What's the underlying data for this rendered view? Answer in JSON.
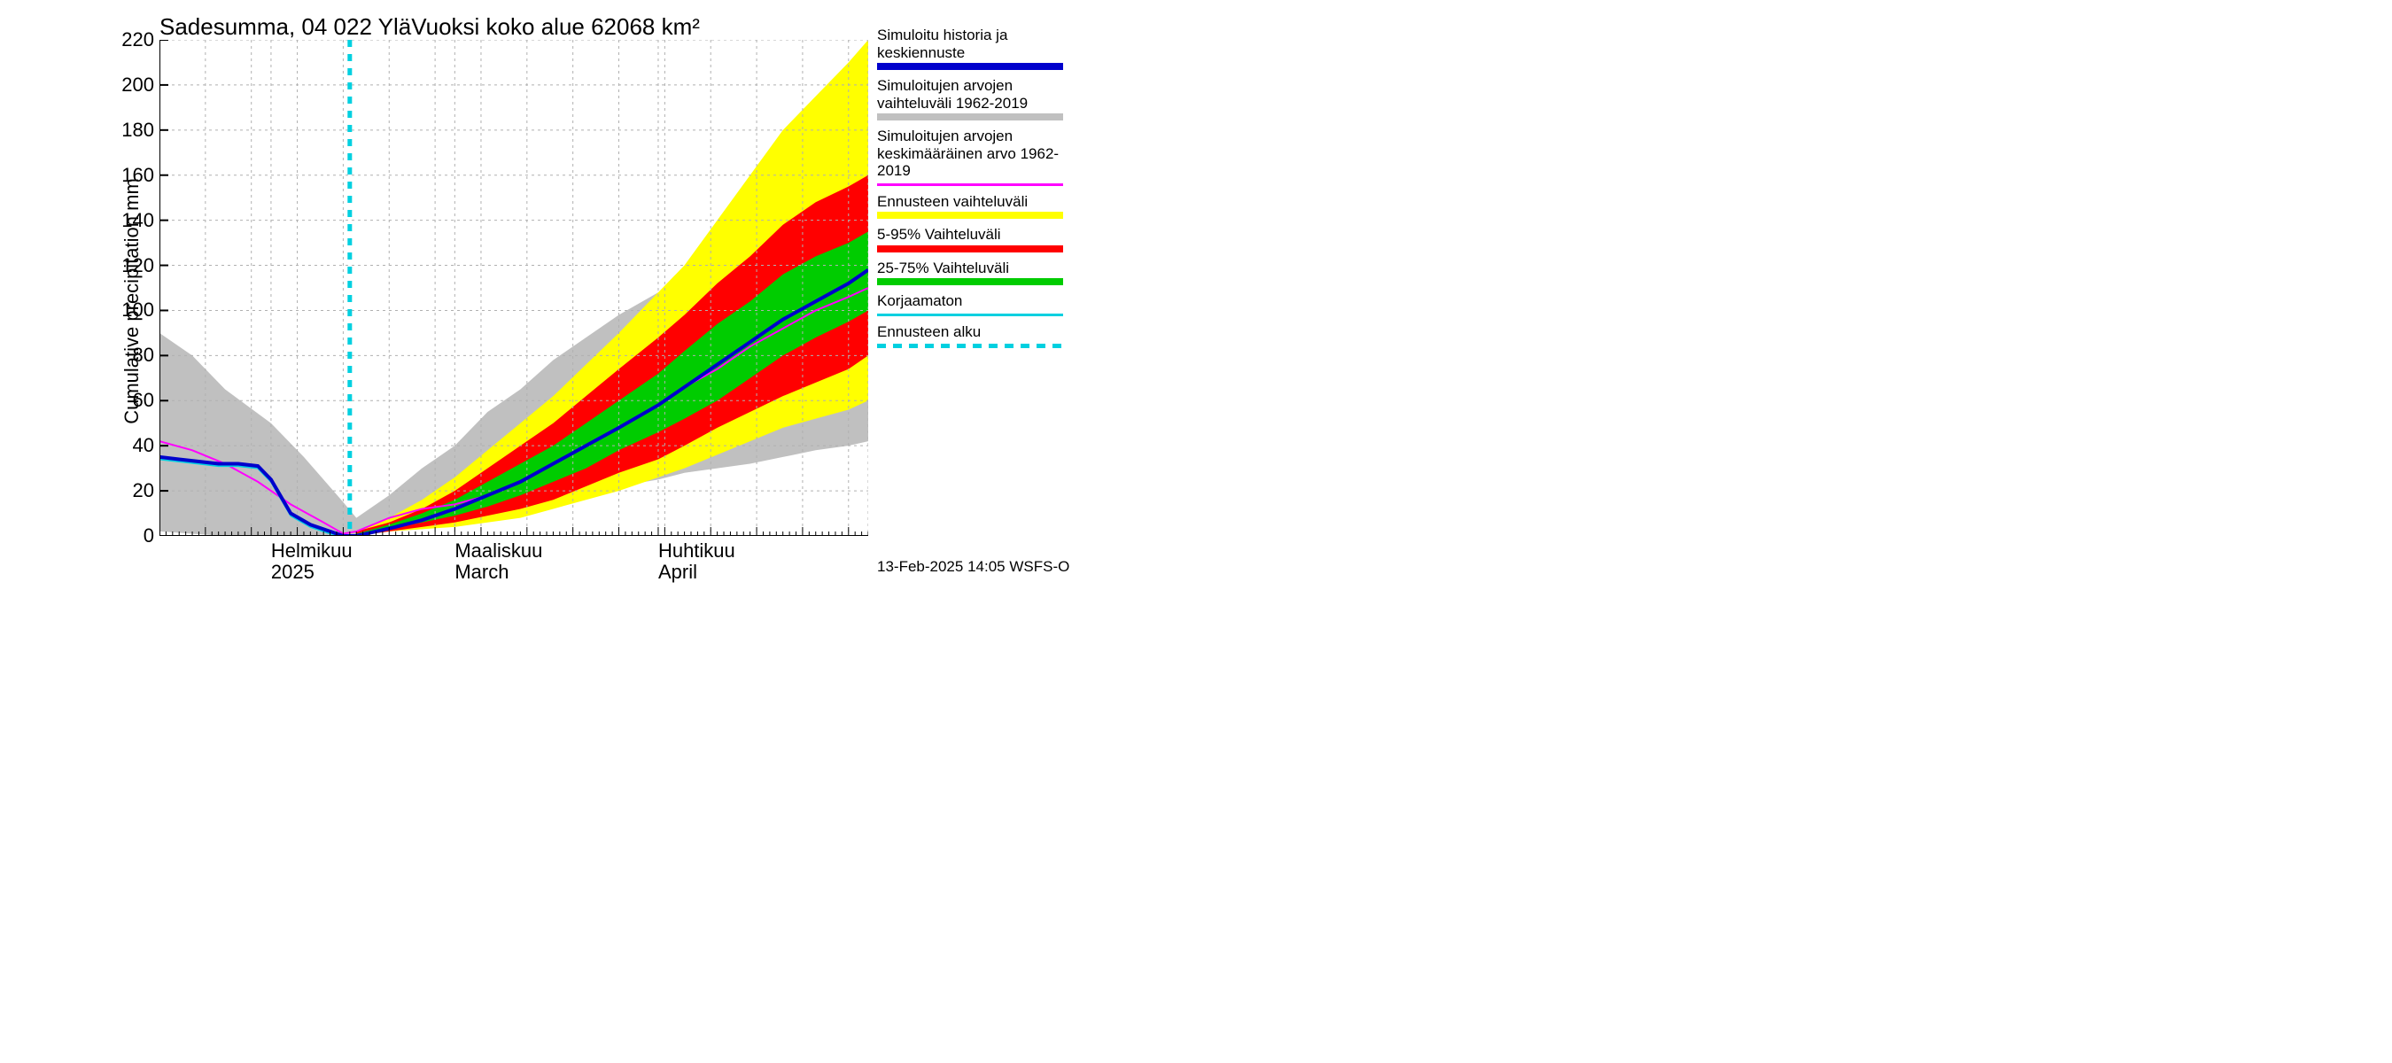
{
  "chart": {
    "type": "line-band",
    "title": "Sadesumma, 04 022 YläVuoksi koko alue 62068 km²",
    "y_axis": {
      "label": "Cumulative precipitation   mm",
      "min": 0,
      "max": 220,
      "tick_step": 20,
      "ticks": [
        0,
        20,
        40,
        60,
        80,
        100,
        120,
        140,
        160,
        180,
        200,
        220
      ],
      "fontsize": 22
    },
    "x_axis": {
      "domain_days": 108,
      "start_label_offset": 0,
      "months": [
        {
          "day": 17,
          "label_fi": "Helmikuu",
          "label_en": "2025"
        },
        {
          "day": 45,
          "label_fi": "Maaliskuu",
          "label_en": "March"
        },
        {
          "day": 76,
          "label_fi": "Huhtikuu",
          "label_en": "April"
        }
      ],
      "minor_tick_days": 1,
      "fontsize": 22
    },
    "forecast_start_day": 29,
    "colors": {
      "background": "#ffffff",
      "grid": "#b0b0b0",
      "axis": "#000000",
      "hist_gray": "#c0c0c0",
      "yellow_band": "#ffff00",
      "red_band": "#ff0000",
      "green_band": "#00cc00",
      "blue_line": "#0000cc",
      "magenta_line": "#ff00ff",
      "cyan_line": "#00d0e0",
      "cyan_dash": "#00d0e0"
    },
    "line_widths": {
      "blue": 4,
      "magenta": 2,
      "cyan": 2,
      "cyan_dash": 5,
      "grid": 1,
      "axis": 2
    },
    "bands": {
      "hist_gray": {
        "x": [
          0,
          5,
          10,
          17,
          22,
          28,
          30,
          35,
          40,
          45,
          50,
          55,
          60,
          65,
          70,
          76,
          80,
          85,
          90,
          95,
          100,
          105,
          108
        ],
        "low": [
          2,
          1,
          0,
          0,
          0,
          0,
          0,
          2,
          3,
          5,
          7,
          10,
          15,
          18,
          22,
          25,
          28,
          30,
          32,
          35,
          38,
          40,
          42
        ],
        "high": [
          90,
          80,
          65,
          50,
          35,
          15,
          8,
          18,
          30,
          40,
          55,
          65,
          78,
          88,
          98,
          108,
          115,
          125,
          132,
          140,
          145,
          150,
          155
        ]
      },
      "yellow": {
        "x": [
          30,
          35,
          40,
          45,
          50,
          55,
          60,
          65,
          70,
          76,
          80,
          85,
          90,
          95,
          100,
          105,
          108
        ],
        "low": [
          0,
          2,
          3,
          4,
          6,
          8,
          12,
          16,
          20,
          26,
          30,
          36,
          42,
          48,
          52,
          56,
          60
        ],
        "high": [
          2,
          8,
          16,
          26,
          38,
          50,
          62,
          76,
          90,
          108,
          120,
          140,
          160,
          180,
          195,
          210,
          220
        ]
      },
      "red": {
        "x": [
          30,
          35,
          40,
          45,
          50,
          55,
          60,
          65,
          70,
          76,
          80,
          85,
          90,
          95,
          100,
          105,
          108
        ],
        "low": [
          0,
          2,
          4,
          6,
          9,
          12,
          16,
          22,
          28,
          34,
          40,
          48,
          55,
          62,
          68,
          74,
          80
        ],
        "high": [
          2,
          6,
          12,
          20,
          30,
          40,
          50,
          62,
          74,
          88,
          98,
          112,
          124,
          138,
          148,
          155,
          160
        ]
      },
      "green": {
        "x": [
          30,
          35,
          40,
          45,
          50,
          55,
          60,
          65,
          70,
          76,
          80,
          85,
          90,
          95,
          100,
          105,
          108
        ],
        "low": [
          0,
          3,
          6,
          9,
          13,
          18,
          24,
          30,
          38,
          46,
          52,
          60,
          70,
          80,
          88,
          95,
          100
        ],
        "high": [
          1,
          5,
          10,
          16,
          24,
          32,
          40,
          50,
          60,
          72,
          82,
          94,
          104,
          116,
          124,
          130,
          135
        ]
      }
    },
    "lines": {
      "blue": {
        "x": [
          0,
          3,
          6,
          9,
          12,
          15,
          17,
          20,
          23,
          26,
          28,
          30,
          33,
          36,
          40,
          45,
          50,
          55,
          60,
          65,
          70,
          76,
          80,
          85,
          90,
          95,
          100,
          105,
          108
        ],
        "y": [
          35,
          34,
          33,
          32,
          32,
          31,
          25,
          10,
          5,
          2,
          0,
          0,
          2,
          4,
          7,
          12,
          18,
          24,
          32,
          40,
          48,
          58,
          66,
          76,
          86,
          96,
          104,
          112,
          118
        ]
      },
      "magenta": {
        "x": [
          0,
          5,
          10,
          15,
          20,
          25,
          28,
          30,
          35,
          40,
          45,
          50,
          55,
          60,
          65,
          70,
          76,
          80,
          85,
          90,
          95,
          100,
          105,
          108
        ],
        "y": [
          42,
          38,
          32,
          24,
          14,
          6,
          1,
          2,
          8,
          12,
          14,
          18,
          24,
          32,
          40,
          48,
          58,
          66,
          74,
          84,
          92,
          100,
          106,
          110
        ]
      },
      "cyan": {
        "x": [
          0,
          3,
          6,
          9,
          12,
          15,
          17,
          20,
          23,
          26,
          28
        ],
        "y": [
          34,
          33,
          32,
          31,
          31,
          30,
          24,
          9,
          4,
          1,
          0
        ]
      }
    }
  },
  "legend": {
    "items": [
      {
        "key": "blue",
        "text": "Simuloitu historia ja keskiennuste",
        "swatch_type": "thick",
        "color": "#0000cc"
      },
      {
        "key": "gray",
        "text": "Simuloitujen arvojen vaihteluväli 1962-2019",
        "swatch_type": "thick",
        "color": "#c0c0c0"
      },
      {
        "key": "magenta",
        "text": "Simuloitujen arvojen keskimääräinen arvo  1962-2019",
        "swatch_type": "thin",
        "color": "#ff00ff"
      },
      {
        "key": "yellow",
        "text": "Ennusteen vaihteluväli",
        "swatch_type": "thick",
        "color": "#ffff00"
      },
      {
        "key": "red",
        "text": "5-95% Vaihteluväli",
        "swatch_type": "thick",
        "color": "#ff0000"
      },
      {
        "key": "green",
        "text": "25-75% Vaihteluväli",
        "swatch_type": "thick",
        "color": "#00cc00"
      },
      {
        "key": "cyan",
        "text": "Korjaamaton",
        "swatch_type": "thin",
        "color": "#00d0e0"
      },
      {
        "key": "cyan_dash",
        "text": "Ennusteen alku",
        "swatch_type": "dash",
        "color": "#00d0e0"
      }
    ]
  },
  "footer": "13-Feb-2025 14:05 WSFS-O"
}
